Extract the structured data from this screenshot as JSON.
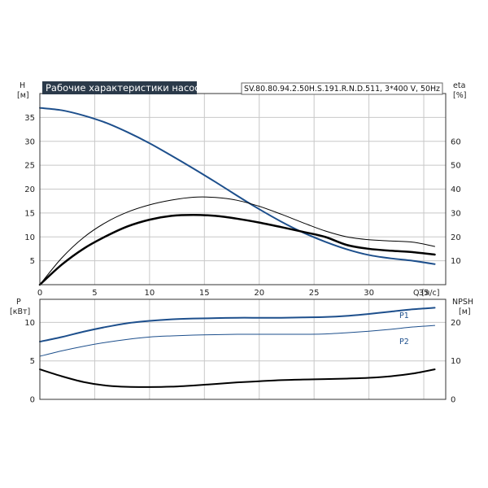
{
  "title": "Рабочие характеристики насоса",
  "model": "SV.80.80.94.2.50H.S.191.R.N.D.511, 3*400 V, 50Hz",
  "colors": {
    "blue": "#1d4f8c",
    "black": "#000000",
    "grid": "#c8c8c8"
  },
  "chart_data": [
    {
      "type": "line",
      "panel": "top",
      "xlabel": "Q [л/с]",
      "xlim": [
        0,
        37
      ],
      "xticks": [
        "0",
        "5",
        "10",
        "15",
        "20",
        "25",
        "30",
        "35"
      ],
      "ylabel_left": {
        "name": "H",
        "unit": "[м]"
      },
      "ylim_left": [
        0,
        40
      ],
      "yticks_left": [
        "5",
        "10",
        "15",
        "20",
        "25",
        "30",
        "35"
      ],
      "ylabel_right": {
        "name": "eta",
        "unit": "[%]"
      },
      "ylim_right": [
        0,
        80
      ],
      "yticks_right": [
        "10",
        "20",
        "30",
        "40",
        "50",
        "60"
      ],
      "grid": true,
      "series": [
        {
          "axis": "left",
          "color": "#1d4f8c",
          "width": 2,
          "x": [
            0,
            2,
            4,
            6,
            8,
            10,
            12,
            14,
            16,
            18,
            20,
            22,
            24,
            26,
            28,
            30,
            32,
            34,
            36
          ],
          "y": [
            37.0,
            36.5,
            35.4,
            33.9,
            31.9,
            29.6,
            27.0,
            24.3,
            21.5,
            18.6,
            15.8,
            13.2,
            10.9,
            9.0,
            7.4,
            6.2,
            5.5,
            5.0,
            4.3
          ]
        },
        {
          "axis": "right",
          "color": "#000000",
          "width": 1,
          "x": [
            0,
            2,
            4,
            6,
            8,
            10,
            12,
            14,
            16,
            18,
            20,
            22,
            24,
            26,
            28,
            30,
            32,
            34,
            36
          ],
          "y": [
            0,
            11.2,
            19.8,
            26.0,
            30.4,
            33.4,
            35.4,
            36.6,
            36.5,
            35.3,
            32.8,
            29.5,
            25.9,
            22.5,
            20.0,
            18.8,
            18.3,
            17.8,
            16.0
          ]
        },
        {
          "axis": "right",
          "color": "#000000",
          "width": 2.5,
          "x": [
            0,
            2,
            4,
            6,
            8,
            10,
            12,
            14,
            16,
            18,
            20,
            22,
            24,
            26,
            28,
            30,
            32,
            34,
            36
          ],
          "y": [
            0,
            8.4,
            15.1,
            20.2,
            24.4,
            27.2,
            28.8,
            29.2,
            28.8,
            27.6,
            26.0,
            24.1,
            22.1,
            20.0,
            16.6,
            15.0,
            14.2,
            13.6,
            12.6
          ]
        }
      ]
    },
    {
      "type": "line",
      "panel": "bottom",
      "xlim": [
        0,
        37
      ],
      "ylabel_left": {
        "name": "P",
        "unit": "[кВт]"
      },
      "ylim_left": [
        0,
        13
      ],
      "yticks_left": [
        "0",
        "5",
        "10"
      ],
      "ylabel_right": {
        "name": "NPSH",
        "unit": "[м]"
      },
      "ylim_right": [
        0,
        26
      ],
      "yticks_right": [
        "0",
        "10",
        "20"
      ],
      "grid": true,
      "series": [
        {
          "name": "P1",
          "axis": "left",
          "color": "#1d4f8c",
          "width": 2,
          "x": [
            0,
            2,
            4,
            6,
            8,
            10,
            12,
            14,
            16,
            18,
            20,
            22,
            24,
            26,
            28,
            30,
            32,
            34,
            36
          ],
          "y": [
            7.5,
            8.1,
            8.8,
            9.4,
            9.9,
            10.2,
            10.4,
            10.5,
            10.55,
            10.6,
            10.6,
            10.6,
            10.65,
            10.7,
            10.85,
            11.1,
            11.4,
            11.7,
            11.9
          ]
        },
        {
          "name": "P2",
          "axis": "left",
          "color": "#1d4f8c",
          "width": 1,
          "x": [
            0,
            2,
            4,
            6,
            8,
            10,
            12,
            14,
            16,
            18,
            20,
            22,
            24,
            26,
            28,
            30,
            32,
            34,
            36
          ],
          "y": [
            5.6,
            6.3,
            6.9,
            7.4,
            7.8,
            8.1,
            8.25,
            8.35,
            8.4,
            8.45,
            8.45,
            8.45,
            8.45,
            8.5,
            8.65,
            8.85,
            9.1,
            9.4,
            9.6
          ]
        },
        {
          "axis": "right",
          "color": "#000000",
          "width": 2,
          "x": [
            0,
            2,
            4,
            6,
            8,
            10,
            12,
            14,
            16,
            18,
            20,
            22,
            24,
            26,
            28,
            30,
            32,
            34,
            36
          ],
          "y": [
            7.8,
            6.0,
            4.5,
            3.6,
            3.25,
            3.2,
            3.3,
            3.6,
            4.0,
            4.4,
            4.7,
            5.0,
            5.15,
            5.25,
            5.4,
            5.6,
            6.0,
            6.7,
            7.8
          ]
        }
      ]
    }
  ]
}
